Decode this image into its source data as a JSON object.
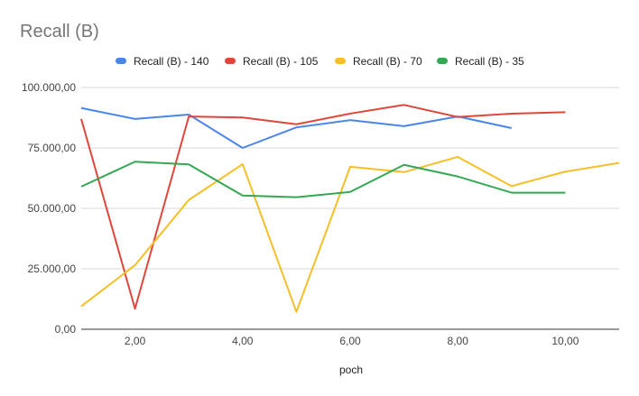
{
  "chart_data": {
    "type": "line",
    "title": "Recall (B)",
    "xlabel": "poch",
    "ylabel": "",
    "xlim": [
      1,
      11
    ],
    "ylim": [
      0,
      100000
    ],
    "x_ticks": [
      2,
      4,
      6,
      8,
      10
    ],
    "x_tick_labels": [
      "2,00",
      "4,00",
      "6,00",
      "8,00",
      "10,00"
    ],
    "y_ticks": [
      0,
      25000,
      50000,
      75000,
      100000
    ],
    "y_tick_labels": [
      "0,00",
      "25.000,00",
      "50.000,00",
      "75.000,00",
      "100.000,00"
    ],
    "grid": true,
    "legend_position": "top",
    "series": [
      {
        "name": "Recall (B) - 140",
        "color": "#4a86e8",
        "x": [
          1,
          2,
          3,
          4,
          5,
          6,
          7,
          8,
          9
        ],
        "values": [
          91500,
          87000,
          88800,
          75000,
          83500,
          86500,
          84000,
          88000,
          83200
        ]
      },
      {
        "name": "Recall (B) - 105",
        "color": "#e0463a",
        "x": [
          1,
          2,
          3,
          4,
          5,
          6,
          7,
          8,
          9,
          10
        ],
        "values": [
          87000,
          8500,
          88000,
          87600,
          84800,
          89200,
          92800,
          87800,
          89200,
          89800
        ]
      },
      {
        "name": "Recall (B) - 70",
        "color": "#f6bf26",
        "x": [
          1,
          2,
          3,
          4,
          5,
          6,
          7,
          8,
          9,
          10,
          11
        ],
        "values": [
          9500,
          26500,
          53500,
          68300,
          7200,
          67200,
          65000,
          71300,
          59200,
          65200,
          68800
        ]
      },
      {
        "name": "Recall (B) - 35",
        "color": "#34a853",
        "x": [
          1,
          2,
          3,
          4,
          5,
          6,
          7,
          8,
          9,
          10
        ],
        "values": [
          59000,
          69300,
          68200,
          55300,
          54600,
          56800,
          68000,
          63200,
          56500,
          56500
        ]
      }
    ]
  }
}
